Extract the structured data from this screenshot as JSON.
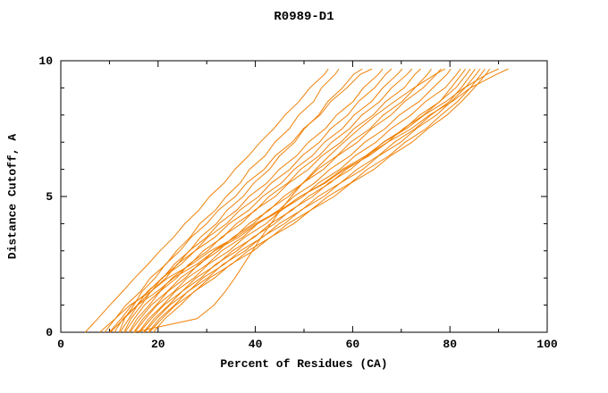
{
  "chart_data": {
    "type": "line",
    "title": "R0989-D1",
    "xlabel": "Percent of Residues (CA)",
    "ylabel": "Distance Cutoff, A",
    "xlim": [
      0,
      100
    ],
    "ylim": [
      0,
      10
    ],
    "x_ticks": [
      0,
      20,
      40,
      60,
      80,
      100
    ],
    "y_ticks": [
      0,
      5,
      10
    ],
    "x_minor": 10,
    "y_minor": 1,
    "grid": false,
    "legend": "none",
    "color": "#ef8209",
    "y_grid": [
      0,
      0.5,
      1,
      1.5,
      2,
      2.5,
      3,
      3.5,
      4,
      4.5,
      5,
      5.5,
      6,
      6.5,
      7,
      7.5,
      8,
      8.5,
      9,
      9.5,
      9.7
    ],
    "series": [
      {
        "x_at_y_grid": [
          5.0,
          7.6,
          10.1,
          12.7,
          15.2,
          17.9,
          20.4,
          23.2,
          25.5,
          28.4,
          30.6,
          33.6,
          35.8,
          38.6,
          41.0,
          43.8,
          46.1,
          49.0,
          51.2,
          54.2,
          55.0
        ]
      },
      {
        "x_at_y_grid": [
          9.0,
          11.2,
          13.4,
          16.4,
          18.4,
          21.6,
          23.8,
          26.6,
          28.6,
          31.8,
          34.0,
          36.9,
          38.8,
          42.0,
          44.0,
          47.0,
          48.9,
          52.0,
          53.6,
          56.4,
          57.2
        ]
      },
      {
        "x_at_y_grid": [
          11.0,
          12.8,
          15.7,
          17.8,
          21.0,
          23.3,
          26.5,
          28.7,
          32.0,
          34.2,
          37.5,
          39.7,
          42.9,
          45.0,
          48.1,
          50.1,
          53.0,
          54.9,
          57.9,
          60.2,
          62.0
        ]
      },
      {
        "x_at_y_grid": [
          12.0,
          13.1,
          15.0,
          16.7,
          19.4,
          21.5,
          24.5,
          26.8,
          30.0,
          32.4,
          35.9,
          38.2,
          41.8,
          44.1,
          47.6,
          49.9,
          53.3,
          55.5,
          58.8,
          61.6,
          64.0
        ]
      },
      {
        "x_at_y_grid": [
          12.2,
          14.0,
          15.8,
          18.6,
          20.8,
          24.0,
          26.4,
          30.0,
          32.5,
          36.2,
          38.7,
          42.4,
          44.9,
          48.5,
          50.9,
          54.4,
          56.7,
          60.1,
          62.2,
          65.3,
          66.2
        ]
      },
      {
        "x_at_y_grid": [
          13.0,
          14.4,
          16.6,
          18.5,
          21.6,
          23.9,
          27.6,
          30.2,
          34.1,
          36.8,
          40.7,
          43.3,
          47.1,
          49.6,
          53.2,
          55.5,
          59.0,
          61.2,
          64.5,
          66.8,
          68.0
        ]
      },
      {
        "x_at_y_grid": [
          10.0,
          12.4,
          14.6,
          18.0,
          20.8,
          24.7,
          27.6,
          31.7,
          34.6,
          38.7,
          41.5,
          45.4,
          48.0,
          51.7,
          54.2,
          57.9,
          60.3,
          63.9,
          66.2,
          69.2,
          70.2
        ]
      },
      {
        "x_at_y_grid": [
          13.2,
          15.1,
          17.2,
          20.3,
          22.9,
          26.6,
          29.3,
          33.3,
          36.1,
          40.1,
          42.8,
          46.7,
          49.3,
          53.1,
          55.7,
          59.4,
          61.9,
          65.6,
          68.0,
          71.2,
          72.2
        ]
      },
      {
        "x_at_y_grid": [
          14.0,
          15.7,
          18.2,
          20.4,
          23.8,
          26.3,
          30.2,
          33.0,
          37.1,
          39.9,
          44.1,
          46.9,
          50.9,
          53.7,
          57.6,
          60.3,
          64.2,
          66.8,
          70.6,
          72.8,
          74.0
        ]
      },
      {
        "x_at_y_grid": [
          14.2,
          16.3,
          18.6,
          21.9,
          24.6,
          28.6,
          31.5,
          35.7,
          38.7,
          42.9,
          45.8,
          49.9,
          52.8,
          56.8,
          59.6,
          63.6,
          66.3,
          70.2,
          72.8,
          75.4,
          76.2
        ]
      },
      {
        "x_at_y_grid": [
          15.0,
          16.9,
          19.6,
          22.0,
          25.6,
          28.3,
          32.4,
          35.4,
          39.6,
          42.6,
          46.8,
          49.8,
          54.0,
          56.9,
          61.0,
          63.9,
          67.9,
          70.7,
          74.5,
          77.2,
          78.2
        ]
      },
      {
        "x_at_y_grid": [
          15.2,
          17.4,
          19.8,
          23.3,
          26.0,
          30.1,
          33.1,
          37.4,
          40.5,
          44.8,
          47.9,
          52.2,
          55.3,
          59.5,
          62.5,
          66.7,
          69.6,
          73.7,
          76.5,
          79.4,
          80.2
        ]
      },
      {
        "x_at_y_grid": [
          16.0,
          18.1,
          21.0,
          23.5,
          27.4,
          30.3,
          34.6,
          37.8,
          42.2,
          45.4,
          49.8,
          53.0,
          57.4,
          60.5,
          64.8,
          67.9,
          72.0,
          75.0,
          79.0,
          81.4,
          82.2
        ]
      },
      {
        "x_at_y_grid": [
          16.2,
          18.6,
          21.2,
          24.9,
          27.8,
          32.1,
          35.3,
          39.8,
          43.1,
          47.6,
          50.9,
          55.4,
          58.7,
          63.1,
          66.3,
          70.7,
          73.8,
          78.0,
          80.2,
          82.4,
          83.2
        ]
      },
      {
        "x_at_y_grid": [
          17.0,
          19.2,
          22.2,
          24.9,
          28.8,
          31.8,
          36.2,
          39.5,
          44.0,
          47.3,
          51.8,
          55.1,
          59.6,
          62.8,
          67.2,
          70.4,
          74.6,
          77.9,
          81.2,
          83.4,
          84.2
        ]
      },
      {
        "x_at_y_grid": [
          17.2,
          19.7,
          22.4,
          26.2,
          29.2,
          33.6,
          36.9,
          41.5,
          44.9,
          49.5,
          52.9,
          57.5,
          60.9,
          65.3,
          68.6,
          72.9,
          76.1,
          79.9,
          82.3,
          84.4,
          85.2
        ]
      },
      {
        "x_at_y_grid": [
          18.0,
          20.3,
          23.4,
          26.1,
          30.2,
          33.3,
          37.9,
          41.3,
          46.0,
          49.4,
          54.1,
          57.5,
          62.1,
          65.4,
          69.9,
          73.1,
          77.2,
          80.3,
          83.1,
          85.4,
          86.2
        ]
      },
      {
        "x_at_y_grid": [
          18.2,
          20.8,
          23.6,
          27.5,
          30.6,
          35.1,
          38.5,
          43.2,
          46.7,
          51.4,
          54.9,
          59.6,
          63.0,
          67.5,
          70.8,
          75.1,
          78.2,
          81.6,
          84.2,
          86.4,
          87.2
        ]
      },
      {
        "x_at_y_grid": [
          19.0,
          21.4,
          24.6,
          27.4,
          31.6,
          34.9,
          39.6,
          43.1,
          47.9,
          51.4,
          56.2,
          59.7,
          64.4,
          67.8,
          72.2,
          75.5,
          79.4,
          82.4,
          85.0,
          87.4,
          88.2
        ]
      },
      {
        "x_at_y_grid": [
          10.2,
          13.0,
          15.8,
          19.8,
          23.2,
          27.9,
          31.6,
          36.6,
          40.4,
          45.4,
          49.2,
          54.1,
          57.9,
          62.7,
          66.4,
          71.1,
          74.7,
          79.2,
          82.9,
          87.6,
          90.0
        ]
      },
      {
        "x_at_y_grid": [
          8.0,
          11.2,
          14.2,
          18.5,
          22.0,
          26.9,
          30.8,
          36.0,
          40.0,
          45.2,
          49.2,
          54.4,
          58.3,
          63.4,
          67.2,
          72.1,
          75.8,
          80.5,
          84.2,
          89.6,
          92.0
        ]
      },
      {
        "x_at_y_grid": [
          15.0,
          28.0,
          31.5,
          33.8,
          35.8,
          37.6,
          39.4,
          41.2,
          43.2,
          45.2,
          47.4,
          49.8,
          52.4,
          55.2,
          58.2,
          61.4,
          64.8,
          68.6,
          72.6,
          77.0,
          79.0
        ]
      }
    ]
  }
}
